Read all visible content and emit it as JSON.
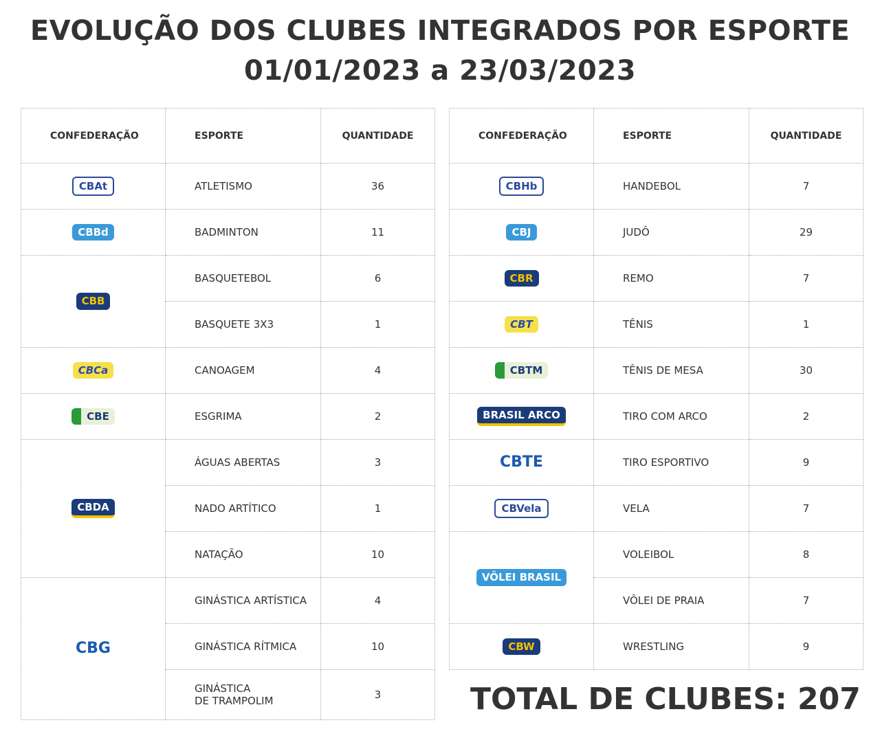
{
  "header": {
    "title_line1": "EVOLUÇÃO DOS CLUBES INTEGRADOS POR ESPORTE",
    "title_line2": "01/01/2023 a 23/03/2023"
  },
  "left_table": {
    "columns": [
      "CONFEDERAÇÃO",
      "ESPORTE",
      "QUANTIDADE"
    ],
    "groups": [
      {
        "logo": "CBAt",
        "rows": [
          [
            "ATLETISMO",
            36
          ]
        ]
      },
      {
        "logo": "CBBd",
        "rows": [
          [
            "BADMINTON",
            11
          ]
        ]
      },
      {
        "logo": "CBB",
        "rows": [
          [
            "BASQUETEBOL",
            6
          ],
          [
            "BASQUETE 3X3",
            1
          ]
        ]
      },
      {
        "logo": "CBCa",
        "rows": [
          [
            "CANOAGEM",
            4
          ]
        ]
      },
      {
        "logo": "CBE",
        "rows": [
          [
            "ESGRIMA",
            2
          ]
        ]
      },
      {
        "logo": "CBDA",
        "rows": [
          [
            "ÁGUAS ABERTAS",
            3
          ],
          [
            "NADO ARTÍTICO",
            1
          ],
          [
            "NATAÇÃO",
            10
          ]
        ]
      },
      {
        "logo": "CBG",
        "rows": [
          [
            "GINÁSTICA ARTÍSTICA",
            4
          ],
          [
            "GINÁSTICA RÍTMICA",
            10
          ],
          [
            "GINÁSTICA\nDE TRAMPOLIM",
            3
          ]
        ]
      }
    ]
  },
  "right_table": {
    "columns": [
      "CONFEDERAÇÃO",
      "ESPORTE",
      "QUANTIDADE"
    ],
    "groups": [
      {
        "logo": "CBHb",
        "rows": [
          [
            "HANDEBOL",
            7
          ]
        ]
      },
      {
        "logo": "CBJ",
        "rows": [
          [
            "JUDÔ",
            29
          ]
        ]
      },
      {
        "logo": "CBR",
        "rows": [
          [
            "REMO",
            7
          ]
        ]
      },
      {
        "logo": "CBT",
        "rows": [
          [
            "TÊNIS",
            1
          ]
        ]
      },
      {
        "logo": "CBTM",
        "rows": [
          [
            "TÊNIS DE MESA",
            30
          ]
        ]
      },
      {
        "logo": "BRASIL ARCO",
        "rows": [
          [
            "TIRO COM ARCO",
            2
          ]
        ]
      },
      {
        "logo": "CBTE",
        "rows": [
          [
            "TIRO ESPORTIVO",
            9
          ]
        ]
      },
      {
        "logo": "CBVela",
        "rows": [
          [
            "VELA",
            7
          ]
        ]
      },
      {
        "logo": "VÔLEI BRASIL",
        "rows": [
          [
            "VOLEIBOL",
            8
          ],
          [
            "VÔLEI DE PRAIA",
            7
          ]
        ]
      },
      {
        "logo": "CBW",
        "rows": [
          [
            "WRESTLING",
            9
          ]
        ]
      }
    ]
  },
  "total": "TOTAL DE CLUBES: 207"
}
